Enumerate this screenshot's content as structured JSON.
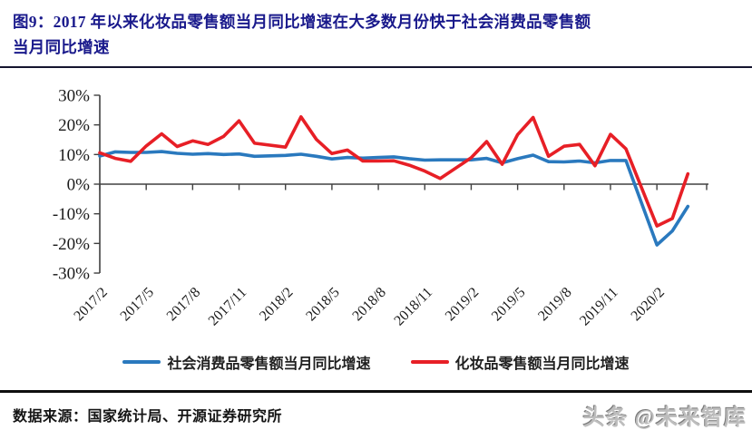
{
  "figure": {
    "title_lines": [
      "图9：2017 年以来化妆品零售额当月同比增速在大多数月份快于社会消费品零售额",
      "当月同比增速"
    ]
  },
  "chart_data": {
    "type": "line",
    "title": "2017 年以来化妆品零售额当月同比增速在大多数月份快于社会消费品零售额当月同比增速",
    "xlabel": "",
    "ylabel": "",
    "ylim": [
      -30,
      30
    ],
    "grid": false,
    "legend_position": "bottom",
    "y_tick_values": [
      30,
      20,
      10,
      0,
      -10,
      -20,
      -30
    ],
    "y_tick_labels": [
      "30%",
      "20%",
      "10%",
      "0%",
      "-10%",
      "-20%",
      "-30%"
    ],
    "x_tick_months": [
      0,
      3,
      6,
      9,
      12,
      15,
      18,
      21,
      24,
      27,
      30,
      33,
      36
    ],
    "x_tick_labels": [
      "2017/2",
      "2017/5",
      "2017/8",
      "2017/11",
      "2018/2",
      "2018/5",
      "2018/8",
      "2018/11",
      "2019/2",
      "2019/5",
      "2019/8",
      "2019/11",
      "2020/2"
    ],
    "categories": [
      "2017/2",
      "2017/3",
      "2017/4",
      "2017/5",
      "2017/6",
      "2017/7",
      "2017/8",
      "2017/9",
      "2017/10",
      "2017/11",
      "2017/12",
      "2018/2",
      "2018/3",
      "2018/4",
      "2018/5",
      "2018/6",
      "2018/7",
      "2018/8",
      "2018/9",
      "2018/10",
      "2018/11",
      "2018/12",
      "2019/2",
      "2019/3",
      "2019/4",
      "2019/5",
      "2019/6",
      "2019/7",
      "2019/8",
      "2019/9",
      "2019/10",
      "2019/11",
      "2019/12",
      "2020/2",
      "2020/3",
      "2020/4"
    ],
    "month_offsets": [
      0,
      1,
      2,
      3,
      4,
      5,
      6,
      7,
      8,
      9,
      10,
      12,
      13,
      14,
      15,
      16,
      17,
      18,
      19,
      20,
      21,
      22,
      24,
      25,
      26,
      27,
      28,
      29,
      30,
      31,
      32,
      33,
      34,
      36,
      37,
      38
    ],
    "series": [
      {
        "name": "社会消费品零售额当月同比增速",
        "color": "#2a79be",
        "values": [
          9.5,
          10.9,
          10.7,
          10.7,
          11.0,
          10.4,
          10.1,
          10.3,
          10.0,
          10.2,
          9.4,
          9.7,
          10.1,
          9.4,
          8.5,
          9.0,
          8.8,
          9.0,
          9.2,
          8.6,
          8.1,
          8.2,
          8.2,
          8.7,
          7.2,
          8.6,
          9.8,
          7.6,
          7.5,
          7.8,
          7.2,
          8.0,
          8.0,
          -20.5,
          -15.8,
          -7.5
        ]
      },
      {
        "name": "化妆品零售额当月同比增速",
        "color": "#e71f26",
        "values": [
          10.6,
          8.7,
          7.7,
          12.9,
          17.0,
          12.7,
          14.6,
          13.4,
          16.1,
          21.4,
          13.8,
          12.5,
          22.7,
          15.1,
          10.3,
          11.5,
          7.8,
          7.8,
          7.9,
          6.4,
          4.4,
          1.9,
          8.9,
          14.4,
          6.7,
          16.7,
          22.5,
          9.4,
          12.8,
          13.4,
          6.2,
          16.8,
          11.9,
          -14.1,
          -11.6,
          3.5
        ]
      }
    ]
  },
  "footer": {
    "source": "数据来源：国家统计局、开源证券研究所",
    "watermark": "头条 @未来智库"
  }
}
